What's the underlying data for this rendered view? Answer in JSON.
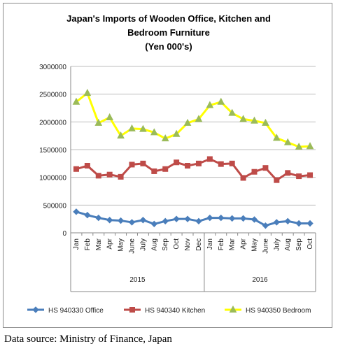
{
  "chart_data": {
    "type": "line",
    "title_lines": [
      "Japan's Imports of  Wooden  Office, Kitchen and",
      "Bedroom Furniture",
      "(Yen 000's)"
    ],
    "x": [
      "Jan",
      "Feb",
      "Mar",
      "Apr",
      "May",
      "June",
      "July",
      "Aug",
      "Sep",
      "Oct",
      "Nov",
      "Dec",
      "Jan",
      "Feb",
      "Mar",
      "Apr",
      "May",
      "June",
      "July",
      "Aug",
      "Sep",
      "Oct"
    ],
    "year_groups": [
      {
        "label": "2015",
        "count": 12
      },
      {
        "label": "2016",
        "count": 10
      }
    ],
    "ylim": [
      0,
      3000000
    ],
    "y_ticks": [
      "0",
      "500000",
      "1000000",
      "1500000",
      "2000000",
      "2500000",
      "3000000"
    ],
    "grid": "horizontal",
    "legend_position": "bottom",
    "series": [
      {
        "name": "HS 940330 Office",
        "color": "#4a7ebb",
        "marker": "diamond",
        "values": [
          380000,
          320000,
          270000,
          230000,
          220000,
          190000,
          230000,
          160000,
          210000,
          250000,
          250000,
          210000,
          270000,
          270000,
          260000,
          260000,
          240000,
          130000,
          190000,
          210000,
          170000,
          170000
        ]
      },
      {
        "name": "HS 940340 Kitchen",
        "color": "#be4b48",
        "marker": "square",
        "values": [
          1150000,
          1210000,
          1030000,
          1050000,
          1010000,
          1230000,
          1250000,
          1110000,
          1150000,
          1270000,
          1210000,
          1250000,
          1330000,
          1240000,
          1250000,
          990000,
          1100000,
          1170000,
          950000,
          1080000,
          1020000,
          1040000
        ]
      },
      {
        "name": "HS 940350 Bedroom",
        "color": "#ffff00",
        "marker": "triangle",
        "values": [
          2360000,
          2520000,
          1980000,
          2080000,
          1750000,
          1880000,
          1870000,
          1810000,
          1700000,
          1780000,
          1980000,
          2050000,
          2300000,
          2360000,
          2160000,
          2050000,
          2020000,
          1980000,
          1710000,
          1630000,
          1550000,
          1560000
        ]
      }
    ]
  },
  "source_note": "Data source: Ministry of Finance, Japan"
}
